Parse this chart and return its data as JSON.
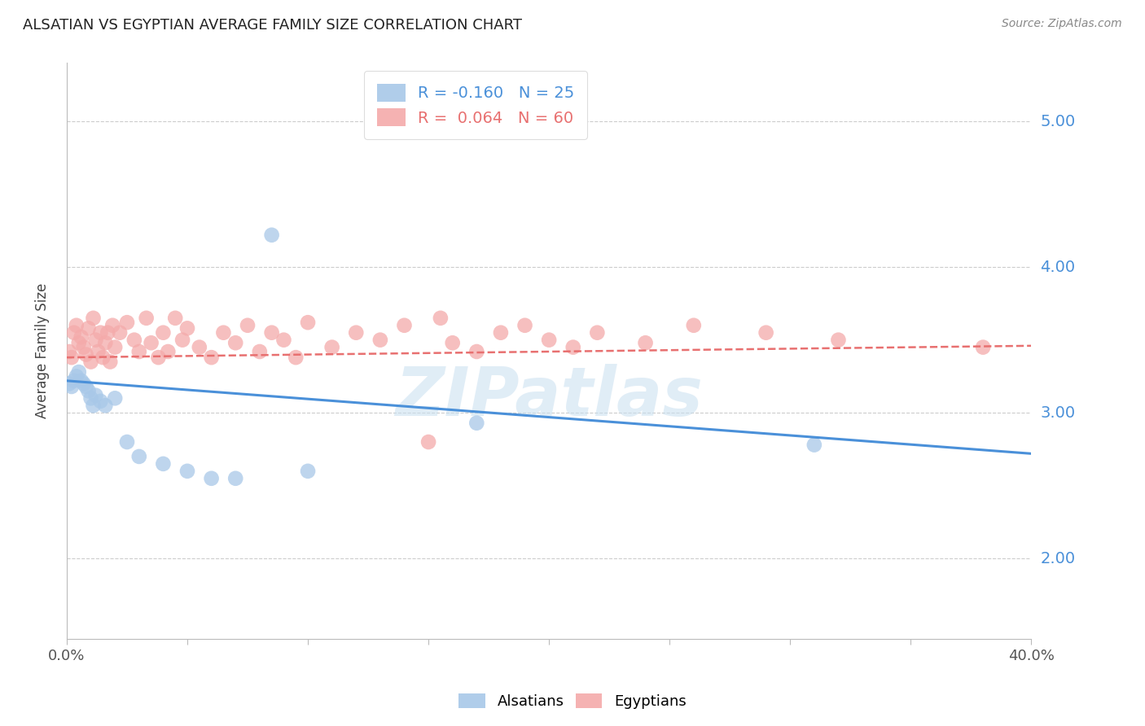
{
  "title": "ALSATIAN VS EGYPTIAN AVERAGE FAMILY SIZE CORRELATION CHART",
  "source": "Source: ZipAtlas.com",
  "ylabel": "Average Family Size",
  "yticks_right": [
    2.0,
    3.0,
    4.0,
    5.0
  ],
  "ytick_labels_right": [
    "2.00",
    "3.00",
    "4.00",
    "5.00"
  ],
  "xlim": [
    0.0,
    0.4
  ],
  "ylim": [
    1.45,
    5.4
  ],
  "alsatian_R": -0.16,
  "alsatian_N": 25,
  "egyptian_R": 0.064,
  "egyptian_N": 60,
  "alsatian_color": "#A8C8E8",
  "egyptian_color": "#F4AAAA",
  "alsatian_line_color": "#4A90D9",
  "egyptian_line_color": "#E87070",
  "watermark": "ZIPatlas",
  "alsatian_line_x0": 0.0,
  "alsatian_line_y0": 3.22,
  "alsatian_line_x1": 0.4,
  "alsatian_line_y1": 2.72,
  "egyptian_line_x0": 0.0,
  "egyptian_line_y0": 3.38,
  "egyptian_line_x1": 0.4,
  "egyptian_line_y1": 3.46,
  "alsatian_x": [
    0.001,
    0.002,
    0.003,
    0.004,
    0.005,
    0.006,
    0.007,
    0.008,
    0.009,
    0.01,
    0.011,
    0.012,
    0.014,
    0.016,
    0.02,
    0.025,
    0.03,
    0.04,
    0.05,
    0.06,
    0.07,
    0.085,
    0.1,
    0.17,
    0.31
  ],
  "alsatian_y": [
    3.2,
    3.18,
    3.22,
    3.25,
    3.28,
    3.22,
    3.2,
    3.18,
    3.15,
    3.1,
    3.05,
    3.12,
    3.08,
    3.05,
    3.1,
    2.8,
    2.7,
    2.65,
    2.6,
    2.55,
    2.55,
    4.22,
    2.6,
    2.93,
    2.78
  ],
  "egyptian_x": [
    0.001,
    0.002,
    0.003,
    0.004,
    0.005,
    0.006,
    0.007,
    0.008,
    0.009,
    0.01,
    0.011,
    0.012,
    0.013,
    0.014,
    0.015,
    0.016,
    0.017,
    0.018,
    0.019,
    0.02,
    0.022,
    0.025,
    0.028,
    0.03,
    0.033,
    0.035,
    0.038,
    0.04,
    0.042,
    0.045,
    0.048,
    0.05,
    0.055,
    0.06,
    0.065,
    0.07,
    0.075,
    0.08,
    0.085,
    0.09,
    0.095,
    0.1,
    0.11,
    0.12,
    0.13,
    0.14,
    0.15,
    0.155,
    0.16,
    0.17,
    0.18,
    0.19,
    0.2,
    0.21,
    0.22,
    0.24,
    0.26,
    0.29,
    0.32,
    0.38
  ],
  "egyptian_y": [
    3.42,
    3.38,
    3.55,
    3.6,
    3.48,
    3.52,
    3.45,
    3.4,
    3.58,
    3.35,
    3.65,
    3.5,
    3.42,
    3.55,
    3.38,
    3.48,
    3.55,
    3.35,
    3.6,
    3.45,
    3.55,
    3.62,
    3.5,
    3.42,
    3.65,
    3.48,
    3.38,
    3.55,
    3.42,
    3.65,
    3.5,
    3.58,
    3.45,
    3.38,
    3.55,
    3.48,
    3.6,
    3.42,
    3.55,
    3.5,
    3.38,
    3.62,
    3.45,
    3.55,
    3.5,
    3.6,
    2.8,
    3.65,
    3.48,
    3.42,
    3.55,
    3.6,
    3.5,
    3.45,
    3.55,
    3.48,
    3.6,
    3.55,
    3.5,
    3.45
  ]
}
